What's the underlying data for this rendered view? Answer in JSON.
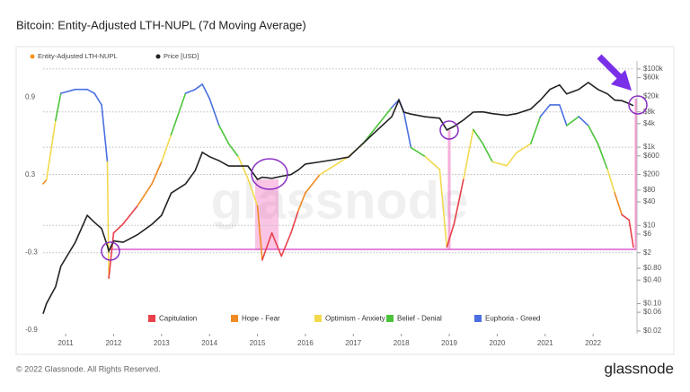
{
  "title": "Bitcoin: Entity-Adjusted LTH-NUPL (7d Moving Average)",
  "footer": {
    "copyright": "© 2022 Glassnode. All Rights Reserved.",
    "logo": "glassnode"
  },
  "watermark": "glassnode",
  "chart_data": {
    "type": "line",
    "x": [
      2010.53,
      2010.6,
      2010.79,
      2010.9,
      2011.2,
      2011.45,
      2011.6,
      2011.75,
      2011.87,
      2011.9,
      2012.0,
      2012.2,
      2012.5,
      2012.8,
      2013.0,
      2013.2,
      2013.5,
      2013.7,
      2013.85,
      2014.0,
      2014.2,
      2014.4,
      2014.6,
      2014.8,
      2015.0,
      2015.1,
      2015.3,
      2015.5,
      2015.7,
      2015.85,
      2016.0,
      2016.3,
      2016.6,
      2016.9,
      2017.2,
      2017.5,
      2017.8,
      2017.95,
      2018.05,
      2018.2,
      2018.5,
      2018.8,
      2018.95,
      2019.1,
      2019.3,
      2019.5,
      2019.7,
      2019.9,
      2020.2,
      2020.4,
      2020.7,
      2020.9,
      2021.1,
      2021.3,
      2021.45,
      2021.7,
      2021.9,
      2022.1,
      2022.3,
      2022.45,
      2022.6,
      2022.75,
      2022.84
    ],
    "series": [
      {
        "name": "Entity-Adjusted LTH-NUPL",
        "color": "#f7931a",
        "values": [
          0.23,
          0.26,
          0.72,
          0.93,
          0.96,
          0.96,
          0.93,
          0.84,
          0.4,
          -0.5,
          -0.15,
          -0.08,
          0.06,
          0.23,
          0.4,
          0.61,
          0.93,
          0.96,
          1.0,
          0.89,
          0.68,
          0.54,
          0.44,
          0.27,
          0.06,
          -0.36,
          -0.15,
          -0.33,
          -0.15,
          0.02,
          0.16,
          0.3,
          0.37,
          0.44,
          0.54,
          0.68,
          0.82,
          0.88,
          0.79,
          0.51,
          0.44,
          0.34,
          -0.26,
          -0.08,
          0.27,
          0.65,
          0.54,
          0.4,
          0.37,
          0.47,
          0.54,
          0.75,
          0.84,
          0.84,
          0.68,
          0.75,
          0.68,
          0.54,
          0.34,
          0.16,
          -0.01,
          -0.05,
          -0.26
        ]
      },
      {
        "name": "Price [USD]",
        "color": "#222222",
        "axis": "y2",
        "values": [
          0.055,
          0.1,
          0.27,
          0.9,
          3.7,
          18,
          12,
          8.3,
          3,
          2.2,
          4,
          3.7,
          5.8,
          10.7,
          18,
          67,
          115,
          250,
          740,
          570,
          450,
          330,
          330,
          330,
          150,
          170,
          160,
          180,
          200,
          260,
          370,
          420,
          480,
          560,
          1250,
          2750,
          6000,
          16000,
          7900,
          7000,
          6000,
          5500,
          2750,
          3400,
          5000,
          7900,
          8000,
          7200,
          6500,
          7200,
          9500,
          16000,
          30000,
          39000,
          23000,
          30000,
          45000,
          30000,
          23000,
          16000,
          15500,
          13000,
          11500
        ]
      }
    ],
    "zones": [
      {
        "name": "Capitulation",
        "color": "#e8414a"
      },
      {
        "name": "Hope - Fear",
        "color": "#f08a24",
        "min": 0
      },
      {
        "name": "Optimism - Anxiety",
        "color": "#f2d94e",
        "min": 0.25
      },
      {
        "name": "Belief - Denial",
        "color": "#4cc43a",
        "min": 0.5
      },
      {
        "name": "Euphoria - Greed",
        "color": "#4a6fe0",
        "min": 0.75
      }
    ],
    "xlim": [
      2010.53,
      2022.84
    ],
    "xticks": [
      2011,
      2012,
      2013,
      2014,
      2015,
      2016,
      2017,
      2018,
      2019,
      2020,
      2021,
      2022
    ],
    "ylim": [
      -0.93,
      1.18
    ],
    "yticks": [
      0.9,
      0.3,
      -0.3,
      -0.9
    ],
    "y2lim": [
      0.017,
      160000
    ],
    "y2log": true,
    "y2ticks": [
      {
        "value": 100000,
        "label": "$100k"
      },
      {
        "value": 60000,
        "label": "$60k"
      },
      {
        "value": 20000,
        "label": "$20k"
      },
      {
        "value": 8000,
        "label": "$8k"
      },
      {
        "value": 4000,
        "label": "$4k"
      },
      {
        "value": 1000,
        "label": "$1k"
      },
      {
        "value": 600,
        "label": "$600"
      },
      {
        "value": 200,
        "label": "$200"
      },
      {
        "value": 80,
        "label": "$80"
      },
      {
        "value": 40,
        "label": "$40"
      },
      {
        "value": 10,
        "label": "$10"
      },
      {
        "value": 6,
        "label": "$6"
      },
      {
        "value": 2,
        "label": "$2"
      },
      {
        "value": 0.8,
        "label": "$0.80"
      },
      {
        "value": 0.4,
        "label": "$0.40"
      },
      {
        "value": 0.1,
        "label": "$0.10"
      },
      {
        "value": 0.06,
        "label": "$0.06"
      },
      {
        "value": 0.02,
        "label": "$0.02"
      }
    ]
  }
}
